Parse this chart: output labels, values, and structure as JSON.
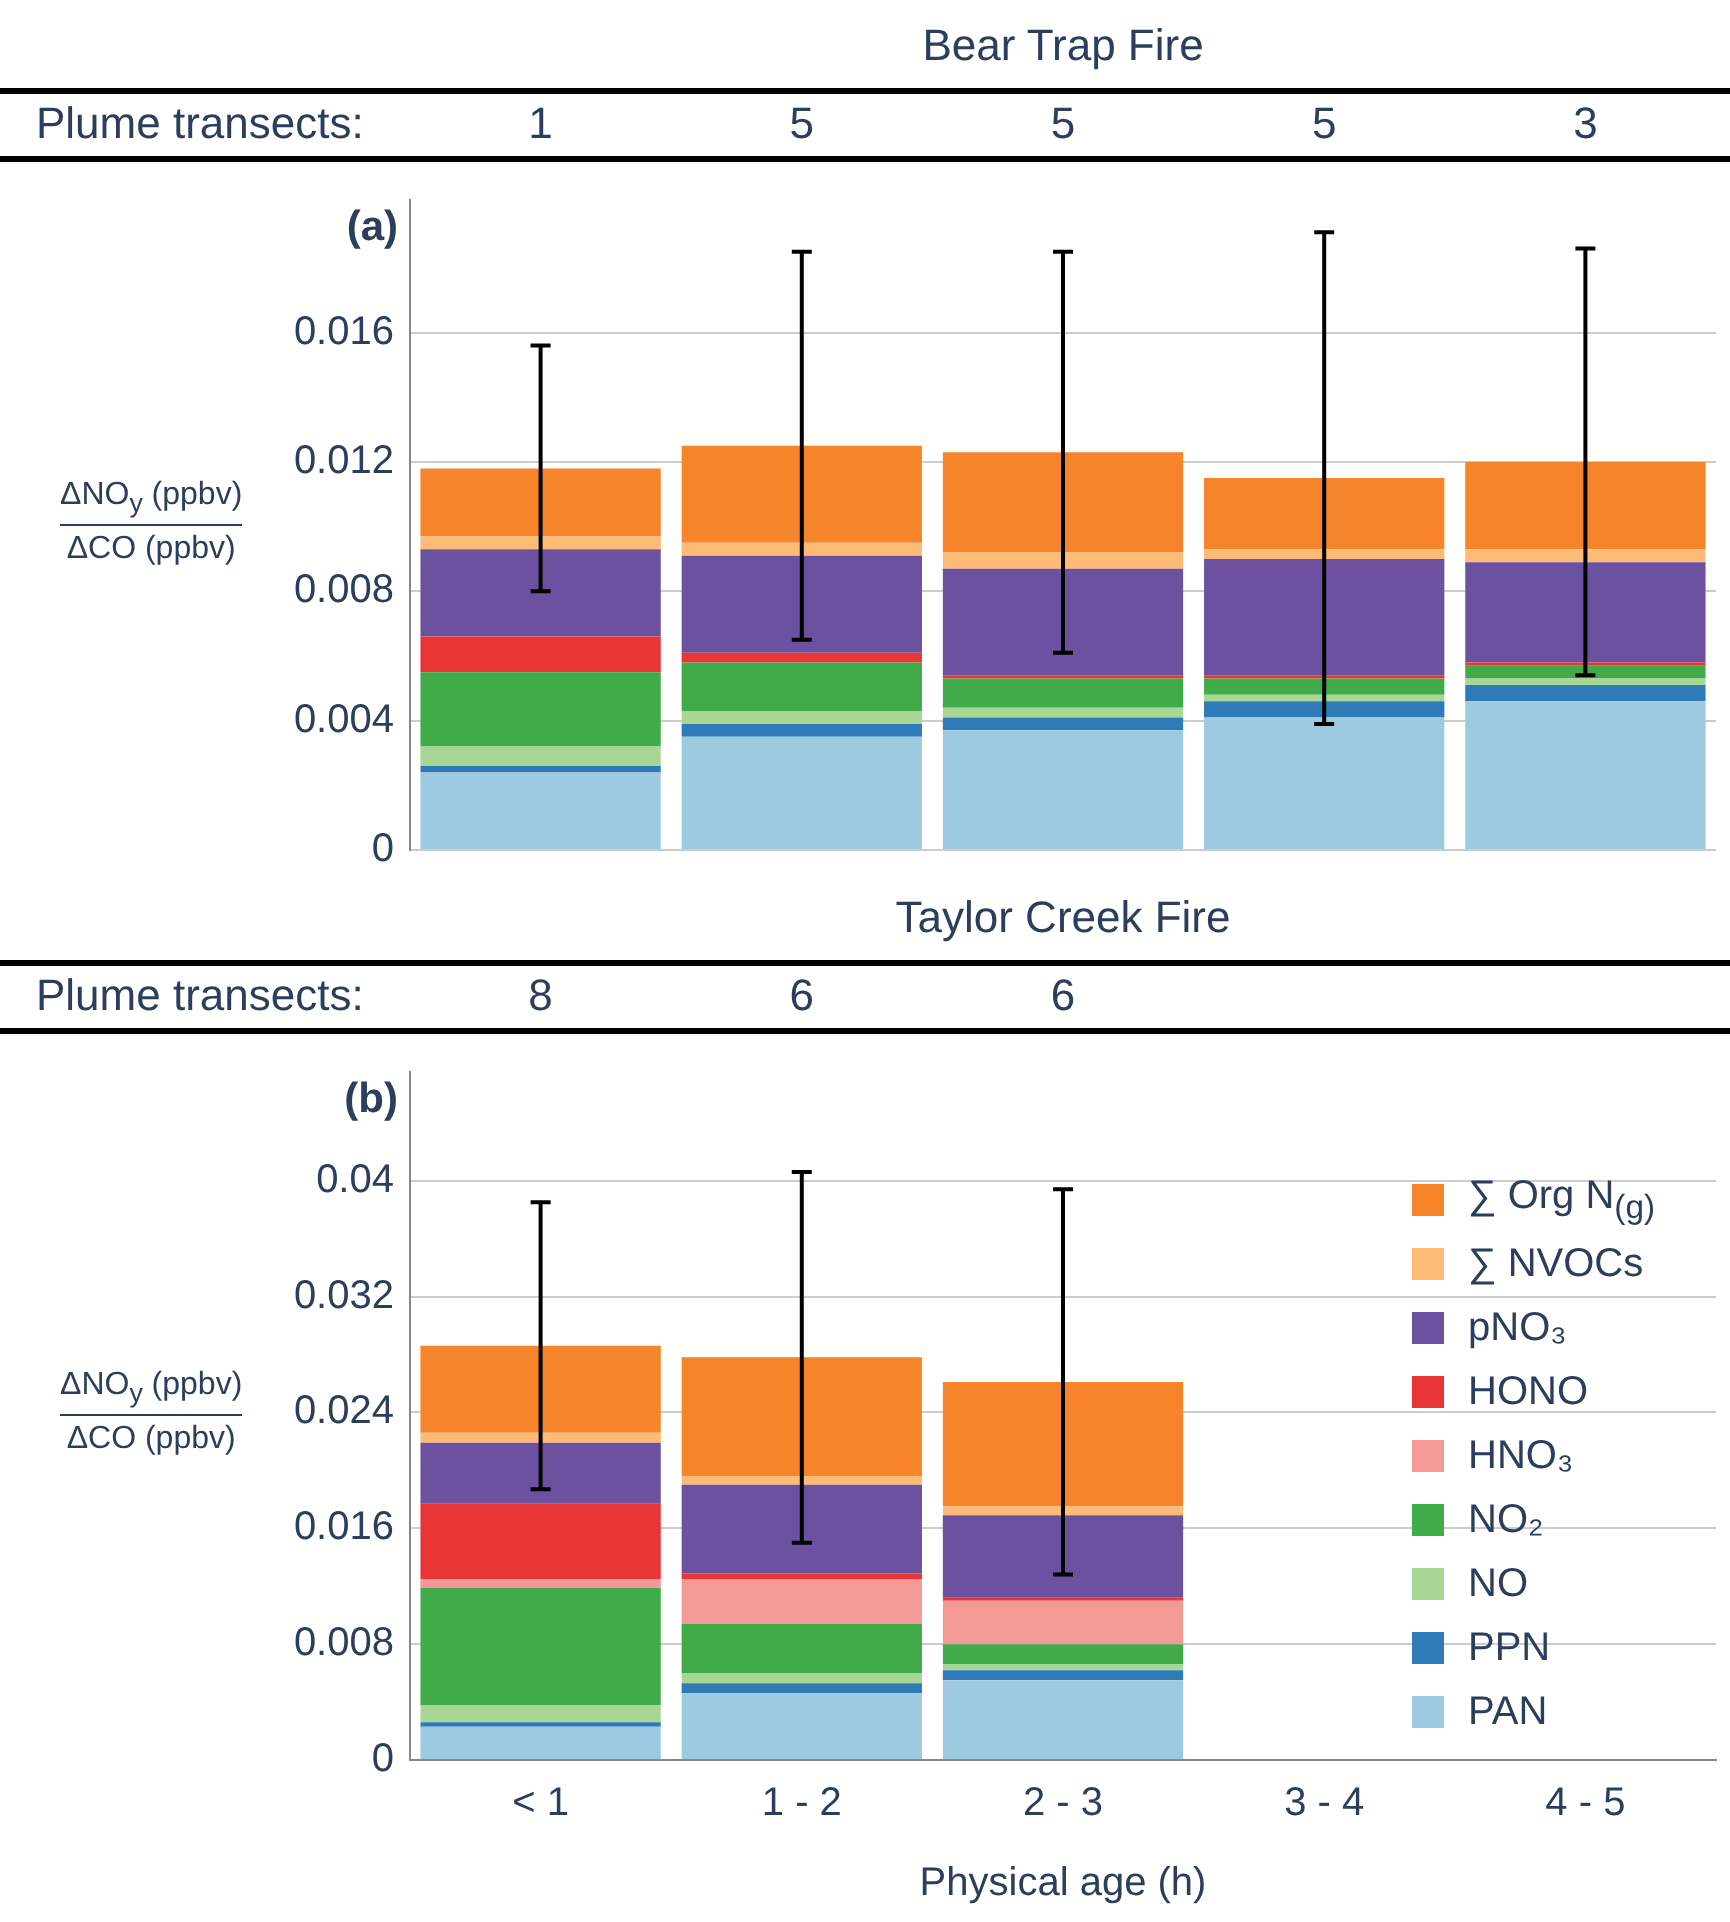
{
  "chart_data": [
    {
      "type": "bar",
      "title": "Bear Trap Fire",
      "ylabel": "ΔNO$_{y}$ (ppbv)\nΔCO  (ppbv)",
      "stacked": true,
      "grid": "y",
      "legend": false,
      "tick_labels": "y",
      "categories": [
        null,
        null,
        null,
        null,
        null
      ],
      "ylim": [
        0,
        0.0201
      ],
      "yticks": [
        0,
        0.004,
        0.008,
        0.012,
        0.016
      ],
      "annotations": [
        "Plume transects:",
        "(a)",
        "1",
        "5",
        "5",
        "5",
        "3"
      ],
      "series": [
        {
          "color": "#9ecae1",
          "values": [
            0.0024,
            0.0035,
            0.0037,
            0.0041,
            0.0046
          ]
        },
        {
          "color": "#2e7bb8",
          "values": [
            0.0002,
            0.0004,
            0.0004,
            0.0005,
            0.0005
          ]
        },
        {
          "color": "#a8d793",
          "values": [
            0.0006,
            0.0004,
            0.0003,
            0.0002,
            0.0002
          ]
        },
        {
          "color": "#41ab4a",
          "values": [
            0.0023,
            0.0015,
            0.0009,
            0.0005,
            0.0004
          ]
        },
        {
          "color": "#ea3536",
          "values": [
            0.0011,
            0.0003,
            0.0001,
            0.0001,
            0.0001
          ]
        },
        {
          "color": "#6c51a0",
          "values": [
            0.0027,
            0.003,
            0.0033,
            0.0036,
            0.0031
          ]
        },
        {
          "color": "#fdbb77",
          "values": [
            0.0004,
            0.0004,
            0.0005,
            0.0003,
            0.0004
          ]
        },
        {
          "color": "#f5842a",
          "values": [
            0.0021,
            0.003,
            0.0031,
            0.0022,
            0.0027
          ],
          "errors": [
            0.0038,
            0.006,
            0.0062,
            0.0076,
            0.0066
          ]
        }
      ]
    },
    {
      "type": "bar",
      "title": "Taylor Creek Fire",
      "xlabel": "Physical age (h)",
      "ylabel": "ΔNO$_{y}$ (ppbv)\nΔCO  (ppbv)",
      "stacked": true,
      "grid": "y",
      "legend": "right",
      "categories": [
        "< 1",
        "1 - 2",
        "2 - 3",
        "3 - 4",
        "4 - 5"
      ],
      "ylim": [
        0,
        0.0475
      ],
      "yticks": [
        0,
        0.008,
        0.016,
        0.024,
        0.032,
        0.04
      ],
      "annotations": [
        "Plume transects:",
        "(b)",
        "8",
        "6",
        "6"
      ],
      "series": [
        {
          "name": "PAN",
          "color": "#9ecae1",
          "values": [
            0.0023,
            0.0046,
            0.0055,
            null,
            null
          ]
        },
        {
          "name": "PPN",
          "color": "#2e7bb8",
          "values": [
            0.0003,
            0.0007,
            0.0007,
            null,
            null
          ]
        },
        {
          "name": "NO",
          "color": "#a8d793",
          "values": [
            0.0012,
            0.0007,
            0.0004,
            null,
            null
          ]
        },
        {
          "name": "NO₂",
          "color": "#41ab4a",
          "values": [
            0.0081,
            0.0034,
            0.0014,
            null,
            null
          ]
        },
        {
          "name": "HNO₃",
          "color": "#f49a96",
          "values": [
            0.0006,
            0.0031,
            0.003,
            null,
            null
          ]
        },
        {
          "name": "HONO",
          "color": "#ea3536",
          "values": [
            0.0052,
            0.0004,
            0.0002,
            null,
            null
          ]
        },
        {
          "name": "pNO₃",
          "color": "#6c51a0",
          "values": [
            0.0042,
            0.0061,
            0.0057,
            null,
            null
          ]
        },
        {
          "name": "∑ NVOCs",
          "color": "#fdbb77",
          "values": [
            0.0007,
            0.0006,
            0.0006,
            null,
            null
          ]
        },
        {
          "name": "∑ Org N$_{(g)}$",
          "color": "#f5842a",
          "values": [
            0.006,
            0.0082,
            0.0086,
            null,
            null
          ],
          "errors": [
            0.0099,
            0.0128,
            0.0133,
            null,
            null
          ]
        }
      ]
    }
  ]
}
